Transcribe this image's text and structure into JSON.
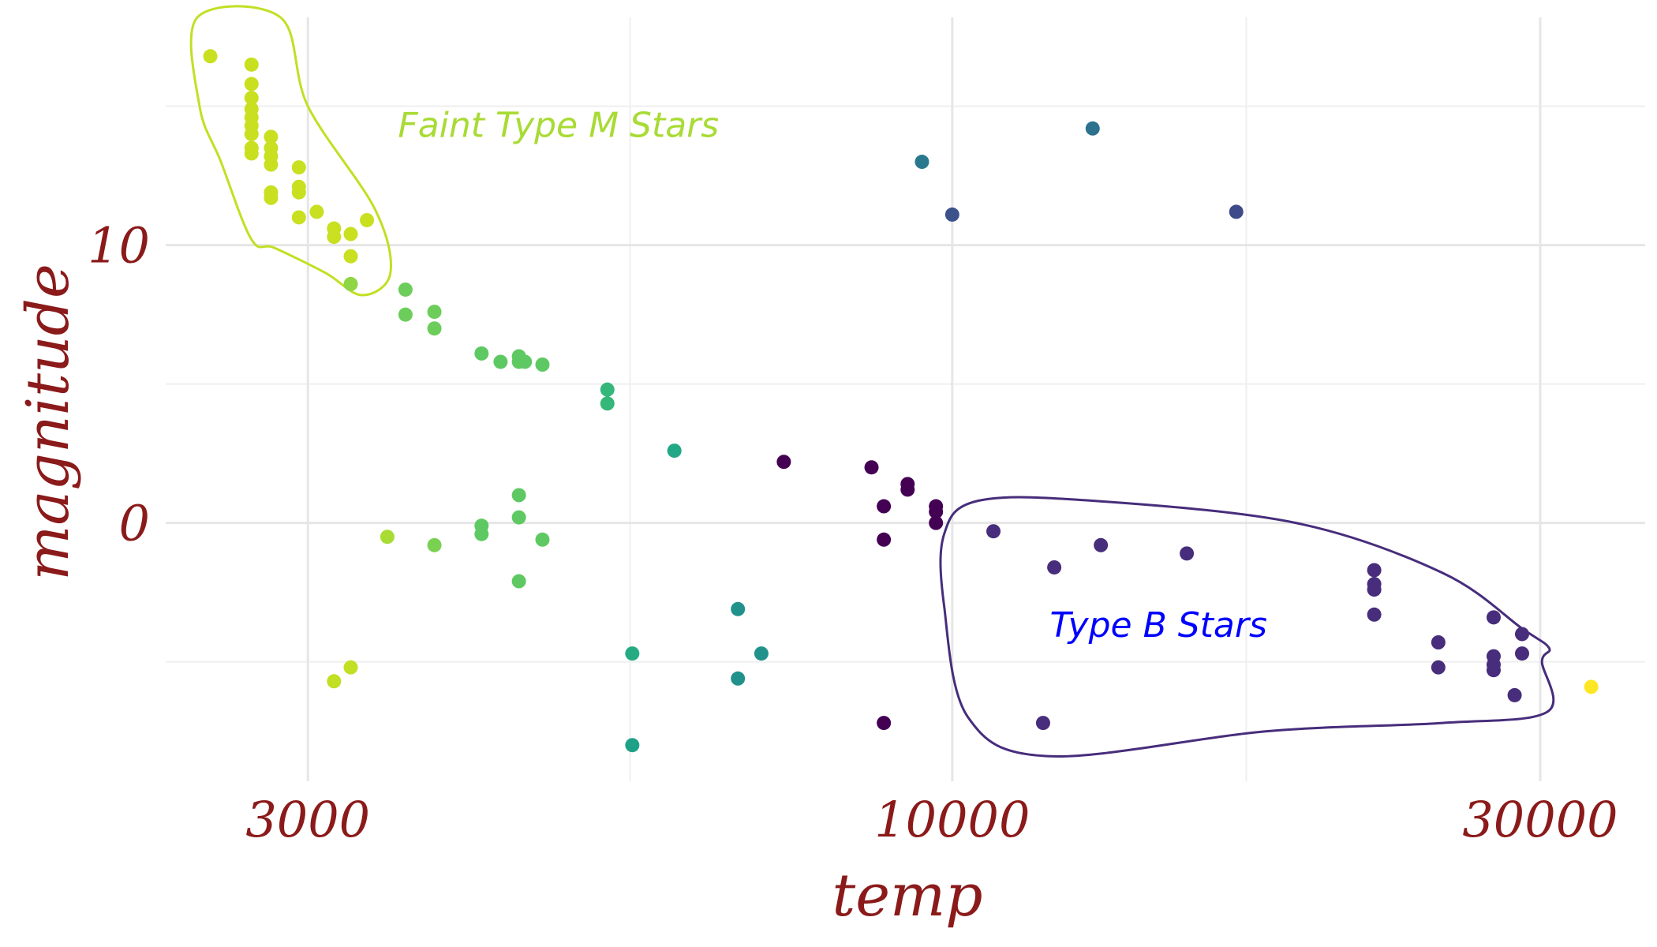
{
  "chart_data": {
    "type": "scatter",
    "xlabel": "temp",
    "ylabel": "magnitude",
    "x_scale": "log10",
    "xlim": [
      2300,
      36500
    ],
    "ylim": [
      -9.3,
      18.2
    ],
    "x_ticks": [
      {
        "value": 3000,
        "label": "3000"
      },
      {
        "value": 10000,
        "label": "10000"
      },
      {
        "value": 30000,
        "label": "30000"
      }
    ],
    "y_ticks": [
      {
        "value": 0,
        "label": "0"
      },
      {
        "value": 10,
        "label": "10"
      }
    ],
    "x_minor_ticks": [
      5477,
      17321
    ],
    "y_minor_ticks": [
      -5,
      5,
      15
    ],
    "grid": true,
    "color_palette": "viridis",
    "points": [
      {
        "x": 2500,
        "y": 16.8,
        "color": "#c8e020"
      },
      {
        "x": 2700,
        "y": 16.5,
        "color": "#c8e020"
      },
      {
        "x": 2700,
        "y": 15.8,
        "color": "#c8e020"
      },
      {
        "x": 2700,
        "y": 15.3,
        "color": "#c8e020"
      },
      {
        "x": 2700,
        "y": 14.9,
        "color": "#c8e020"
      },
      {
        "x": 2700,
        "y": 14.6,
        "color": "#c8e020"
      },
      {
        "x": 2700,
        "y": 14.3,
        "color": "#c8e020"
      },
      {
        "x": 2700,
        "y": 14.0,
        "color": "#c8e020"
      },
      {
        "x": 2700,
        "y": 13.5,
        "color": "#c8e020"
      },
      {
        "x": 2700,
        "y": 13.3,
        "color": "#c8e020"
      },
      {
        "x": 2800,
        "y": 13.9,
        "color": "#c8e020"
      },
      {
        "x": 2800,
        "y": 13.5,
        "color": "#c8e020"
      },
      {
        "x": 2800,
        "y": 13.2,
        "color": "#c8e020"
      },
      {
        "x": 2800,
        "y": 12.9,
        "color": "#c8e020"
      },
      {
        "x": 2800,
        "y": 11.9,
        "color": "#c8e020"
      },
      {
        "x": 2800,
        "y": 11.7,
        "color": "#c8e020"
      },
      {
        "x": 2950,
        "y": 12.8,
        "color": "#c8e020"
      },
      {
        "x": 2950,
        "y": 12.1,
        "color": "#c8e020"
      },
      {
        "x": 2950,
        "y": 11.9,
        "color": "#c8e020"
      },
      {
        "x": 2950,
        "y": 11.0,
        "color": "#c8e020"
      },
      {
        "x": 3050,
        "y": 11.2,
        "color": "#c8e020"
      },
      {
        "x": 3150,
        "y": 10.6,
        "color": "#c8e020"
      },
      {
        "x": 3150,
        "y": 10.3,
        "color": "#c8e020"
      },
      {
        "x": 3250,
        "y": 10.4,
        "color": "#c8e020"
      },
      {
        "x": 3250,
        "y": 9.6,
        "color": "#c8e020"
      },
      {
        "x": 3350,
        "y": 10.9,
        "color": "#c8e020"
      },
      {
        "x": 3250,
        "y": 8.6,
        "color": "#8ed645"
      },
      {
        "x": 3150,
        "y": -5.7,
        "color": "#c2df23"
      },
      {
        "x": 3250,
        "y": -5.2,
        "color": "#c2df23"
      },
      {
        "x": 3480,
        "y": -0.5,
        "color": "#a8db34"
      },
      {
        "x": 3600,
        "y": 8.4,
        "color": "#6ccd5a"
      },
      {
        "x": 3600,
        "y": 7.5,
        "color": "#6ccd5a"
      },
      {
        "x": 3800,
        "y": 7.6,
        "color": "#6ccd5a"
      },
      {
        "x": 3800,
        "y": 7.0,
        "color": "#6ccd5a"
      },
      {
        "x": 3800,
        "y": -0.8,
        "color": "#7ad151"
      },
      {
        "x": 4150,
        "y": 6.1,
        "color": "#5ec962"
      },
      {
        "x": 4300,
        "y": 5.8,
        "color": "#5ec962"
      },
      {
        "x": 4450,
        "y": 6.0,
        "color": "#5ec962"
      },
      {
        "x": 4450,
        "y": 5.8,
        "color": "#5ec962"
      },
      {
        "x": 4500,
        "y": 5.8,
        "color": "#5ec962"
      },
      {
        "x": 4650,
        "y": 5.7,
        "color": "#5ec962"
      },
      {
        "x": 4150,
        "y": -0.1,
        "color": "#5ec962"
      },
      {
        "x": 4150,
        "y": -0.4,
        "color": "#5ec962"
      },
      {
        "x": 4450,
        "y": 1.0,
        "color": "#5ec962"
      },
      {
        "x": 4450,
        "y": 0.2,
        "color": "#5ec962"
      },
      {
        "x": 4450,
        "y": -2.1,
        "color": "#5ec962"
      },
      {
        "x": 4650,
        "y": -0.6,
        "color": "#5ec962"
      },
      {
        "x": 5250,
        "y": 4.8,
        "color": "#35b779"
      },
      {
        "x": 5250,
        "y": 4.3,
        "color": "#35b779"
      },
      {
        "x": 5950,
        "y": 2.6,
        "color": "#22a884"
      },
      {
        "x": 5500,
        "y": -4.7,
        "color": "#25ab82"
      },
      {
        "x": 5500,
        "y": -8.0,
        "color": "#1fa187"
      },
      {
        "x": 6700,
        "y": -3.1,
        "color": "#21918c"
      },
      {
        "x": 6700,
        "y": -5.6,
        "color": "#21918c"
      },
      {
        "x": 7000,
        "y": -4.7,
        "color": "#21918c"
      },
      {
        "x": 7300,
        "y": 2.2,
        "color": "#440154"
      },
      {
        "x": 8600,
        "y": 2.0,
        "color": "#440154"
      },
      {
        "x": 8800,
        "y": 0.6,
        "color": "#440154"
      },
      {
        "x": 8800,
        "y": -0.6,
        "color": "#440154"
      },
      {
        "x": 8800,
        "y": -7.2,
        "color": "#440154"
      },
      {
        "x": 9200,
        "y": 1.4,
        "color": "#440154"
      },
      {
        "x": 9200,
        "y": 1.2,
        "color": "#440154"
      },
      {
        "x": 9700,
        "y": 0.6,
        "color": "#440154"
      },
      {
        "x": 9700,
        "y": 0.4,
        "color": "#440154"
      },
      {
        "x": 9700,
        "y": 0.0,
        "color": "#440154"
      },
      {
        "x": 9450,
        "y": 13.0,
        "color": "#2a788e"
      },
      {
        "x": 10000,
        "y": 11.1,
        "color": "#3b528b"
      },
      {
        "x": 13000,
        "y": 14.2,
        "color": "#2c728e"
      },
      {
        "x": 17000,
        "y": 11.2,
        "color": "#3e4a89"
      },
      {
        "x": 10800,
        "y": -0.3,
        "color": "#472d7b"
      },
      {
        "x": 12100,
        "y": -1.6,
        "color": "#472d7b"
      },
      {
        "x": 13200,
        "y": -0.8,
        "color": "#472d7b"
      },
      {
        "x": 15500,
        "y": -1.1,
        "color": "#472d7b"
      },
      {
        "x": 11850,
        "y": -7.2,
        "color": "#472d7b"
      },
      {
        "x": 22000,
        "y": -1.7,
        "color": "#472d7b"
      },
      {
        "x": 22000,
        "y": -2.2,
        "color": "#472d7b"
      },
      {
        "x": 22000,
        "y": -2.4,
        "color": "#472d7b"
      },
      {
        "x": 22000,
        "y": -3.3,
        "color": "#472d7b"
      },
      {
        "x": 24800,
        "y": -4.3,
        "color": "#472d7b"
      },
      {
        "x": 24800,
        "y": -5.2,
        "color": "#472d7b"
      },
      {
        "x": 27500,
        "y": -3.4,
        "color": "#472d7b"
      },
      {
        "x": 27500,
        "y": -4.8,
        "color": "#472d7b"
      },
      {
        "x": 27500,
        "y": -5.1,
        "color": "#472d7b"
      },
      {
        "x": 27500,
        "y": -5.3,
        "color": "#472d7b"
      },
      {
        "x": 29000,
        "y": -4.0,
        "color": "#472d7b"
      },
      {
        "x": 29000,
        "y": -4.7,
        "color": "#472d7b"
      },
      {
        "x": 28600,
        "y": -6.2,
        "color": "#472d7b"
      },
      {
        "x": 33000,
        "y": -5.9,
        "color": "#fde725"
      }
    ],
    "annotations": [
      {
        "text": "Faint Type M Stars",
        "x": 3550,
        "y": 13.9,
        "color": "#a8db34"
      },
      {
        "text": "Type B Stars",
        "x": 12000,
        "y": -4.1,
        "color": "#0000ff"
      }
    ],
    "hulls": [
      {
        "label": "Faint Type M Stars",
        "color": "#c2df23",
        "points": [
          [
            2440,
            18.2
          ],
          [
            2850,
            18.2
          ],
          [
            3000,
            15.0
          ],
          [
            3400,
            11.3
          ],
          [
            3500,
            9.0
          ],
          [
            3320,
            8.2
          ],
          [
            3100,
            9.0
          ],
          [
            2820,
            9.9
          ],
          [
            2700,
            10.2
          ],
          [
            2550,
            13.0
          ],
          [
            2450,
            15.0
          ]
        ]
      },
      {
        "label": "Type B Stars",
        "color": "#472d7b",
        "points": [
          [
            10500,
            0.8
          ],
          [
            13000,
            0.8
          ],
          [
            19000,
            0.0
          ],
          [
            25000,
            -1.8
          ],
          [
            29000,
            -3.8
          ],
          [
            30500,
            -4.5
          ],
          [
            30100,
            -5.0
          ],
          [
            30400,
            -6.8
          ],
          [
            25000,
            -7.2
          ],
          [
            18000,
            -7.5
          ],
          [
            12000,
            -8.4
          ],
          [
            10300,
            -7.0
          ],
          [
            9850,
            -3.0
          ],
          [
            9850,
            -0.4
          ]
        ]
      }
    ]
  }
}
